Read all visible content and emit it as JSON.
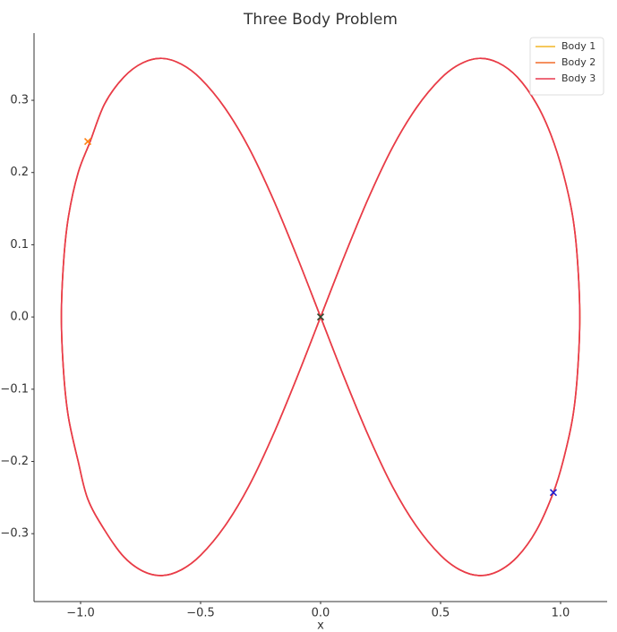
{
  "chart_data": {
    "type": "line",
    "title": "Three Body Problem",
    "x_label": "x",
    "series": [
      {
        "name": "Body 1",
        "color": "#f2b526",
        "x": [
          0,
          0.1,
          0.2,
          0.3,
          0.4,
          0.5,
          0.58,
          0.66,
          0.74,
          0.82,
          0.9,
          0.96,
          1.01,
          1.05,
          1.07,
          1.08,
          1.07,
          1.05,
          1.01,
          0.97,
          0.9,
          0.82,
          0.74,
          0.66,
          0.58,
          0.5,
          0.4,
          0.3,
          0.2,
          0.1,
          0,
          -0.1,
          -0.2,
          -0.3,
          -0.4,
          -0.5,
          -0.58,
          -0.66,
          -0.74,
          -0.82,
          -0.9,
          -0.96,
          -1.01,
          -1.05,
          -1.07,
          -1.08,
          -1.07,
          -1.05,
          -1.01,
          -0.97,
          -0.9,
          -0.82,
          -0.74,
          -0.66,
          -0.58,
          -0.5,
          -0.4,
          -0.3,
          -0.2,
          -0.1,
          0
        ],
        "values": [
          0,
          0.085,
          0.165,
          0.235,
          0.29,
          0.33,
          0.35,
          0.358,
          0.352,
          0.332,
          0.295,
          0.252,
          0.2,
          0.14,
          0.08,
          0,
          -0.08,
          -0.14,
          -0.2,
          -0.243,
          -0.295,
          -0.332,
          -0.352,
          -0.358,
          -0.35,
          -0.33,
          -0.29,
          -0.235,
          -0.165,
          -0.085,
          0,
          0.085,
          0.165,
          0.235,
          0.29,
          0.33,
          0.35,
          0.358,
          0.352,
          0.332,
          0.295,
          0.243,
          0.2,
          0.14,
          0.08,
          0,
          -0.08,
          -0.14,
          -0.2,
          -0.252,
          -0.295,
          -0.332,
          -0.352,
          -0.358,
          -0.35,
          -0.33,
          -0.29,
          -0.235,
          -0.165,
          -0.085,
          0
        ]
      },
      {
        "name": "Body 2",
        "color": "#f26b2a",
        "x": [
          0,
          0.1,
          0.2,
          0.3,
          0.4,
          0.5,
          0.58,
          0.66,
          0.74,
          0.82,
          0.9,
          0.96,
          1.01,
          1.05,
          1.07,
          1.08,
          1.07,
          1.05,
          1.01,
          0.97,
          0.9,
          0.82,
          0.74,
          0.66,
          0.58,
          0.5,
          0.4,
          0.3,
          0.2,
          0.1,
          0,
          -0.1,
          -0.2,
          -0.3,
          -0.4,
          -0.5,
          -0.58,
          -0.66,
          -0.74,
          -0.82,
          -0.9,
          -0.96,
          -1.01,
          -1.05,
          -1.07,
          -1.08,
          -1.07,
          -1.05,
          -1.01,
          -0.97,
          -0.9,
          -0.82,
          -0.74,
          -0.66,
          -0.58,
          -0.5,
          -0.4,
          -0.3,
          -0.2,
          -0.1,
          0
        ],
        "values": [
          0,
          0.085,
          0.165,
          0.235,
          0.29,
          0.33,
          0.35,
          0.358,
          0.352,
          0.332,
          0.295,
          0.252,
          0.2,
          0.14,
          0.08,
          0,
          -0.08,
          -0.14,
          -0.2,
          -0.243,
          -0.295,
          -0.332,
          -0.352,
          -0.358,
          -0.35,
          -0.33,
          -0.29,
          -0.235,
          -0.165,
          -0.085,
          0,
          0.085,
          0.165,
          0.235,
          0.29,
          0.33,
          0.35,
          0.358,
          0.352,
          0.332,
          0.295,
          0.243,
          0.2,
          0.14,
          0.08,
          0,
          -0.08,
          -0.14,
          -0.2,
          -0.252,
          -0.295,
          -0.332,
          -0.352,
          -0.358,
          -0.35,
          -0.33,
          -0.29,
          -0.235,
          -0.165,
          -0.085,
          0
        ]
      },
      {
        "name": "Body 3",
        "color": "#e8384f",
        "x": [
          0,
          0.1,
          0.2,
          0.3,
          0.4,
          0.5,
          0.58,
          0.66,
          0.74,
          0.82,
          0.9,
          0.96,
          1.01,
          1.05,
          1.07,
          1.08,
          1.07,
          1.05,
          1.01,
          0.97,
          0.9,
          0.82,
          0.74,
          0.66,
          0.58,
          0.5,
          0.4,
          0.3,
          0.2,
          0.1,
          0,
          -0.1,
          -0.2,
          -0.3,
          -0.4,
          -0.5,
          -0.58,
          -0.66,
          -0.74,
          -0.82,
          -0.9,
          -0.96,
          -1.01,
          -1.05,
          -1.07,
          -1.08,
          -1.07,
          -1.05,
          -1.01,
          -0.97,
          -0.9,
          -0.82,
          -0.74,
          -0.66,
          -0.58,
          -0.5,
          -0.4,
          -0.3,
          -0.2,
          -0.1,
          0
        ],
        "values": [
          0,
          0.085,
          0.165,
          0.235,
          0.29,
          0.33,
          0.35,
          0.358,
          0.352,
          0.332,
          0.295,
          0.252,
          0.2,
          0.14,
          0.08,
          0,
          -0.08,
          -0.14,
          -0.2,
          -0.243,
          -0.295,
          -0.332,
          -0.352,
          -0.358,
          -0.35,
          -0.33,
          -0.29,
          -0.235,
          -0.165,
          -0.085,
          0,
          0.085,
          0.165,
          0.235,
          0.29,
          0.33,
          0.35,
          0.358,
          0.352,
          0.332,
          0.295,
          0.243,
          0.2,
          0.14,
          0.08,
          0,
          -0.08,
          -0.14,
          -0.2,
          -0.252,
          -0.295,
          -0.332,
          -0.352,
          -0.358,
          -0.35,
          -0.33,
          -0.29,
          -0.235,
          -0.165,
          -0.085,
          0
        ]
      }
    ],
    "markers": [
      {
        "x": 0.97,
        "y": -0.243,
        "color": "#1f1fd0"
      },
      {
        "x": -0.97,
        "y": 0.243,
        "color": "#ff7f0e"
      },
      {
        "x": 0,
        "y": 0,
        "color": "#2d4a2d"
      }
    ],
    "xlim": [
      -1.194,
      1.194
    ],
    "xticks": [
      {
        "value": -1.0,
        "label": "−1.0"
      },
      {
        "value": -0.5,
        "label": "−0.5"
      },
      {
        "value": 0,
        "label": "0.0"
      },
      0.5,
      {
        "value": 1.0,
        "label": "1.0"
      }
    ],
    "ylim": [
      -0.394,
      0.393
    ],
    "yticks": [
      {
        "value": -0.3,
        "label": "−0.3"
      },
      {
        "value": -0.2,
        "label": "−0.2"
      },
      {
        "value": -0.1,
        "label": "−0.1"
      },
      {
        "value": 0,
        "label": "0.0"
      },
      0.1,
      0.2,
      0.3
    ],
    "grid": false,
    "legend": "upper right"
  }
}
